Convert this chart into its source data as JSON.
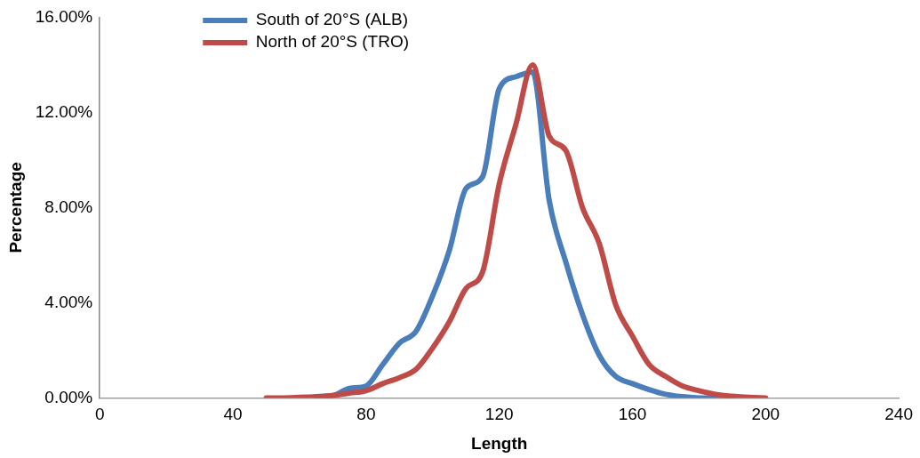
{
  "chart_data": {
    "type": "line",
    "xlabel": "Length",
    "ylabel": "Percentage",
    "x": [
      50,
      55,
      60,
      65,
      70,
      75,
      80,
      85,
      90,
      95,
      100,
      105,
      110,
      115,
      120,
      125,
      130,
      135,
      140,
      145,
      150,
      155,
      160,
      165,
      170,
      175,
      180,
      185,
      190,
      195,
      200
    ],
    "series": [
      {
        "name": "South of 20°S (ALB)",
        "color": "#4a7ebb",
        "values": [
          null,
          null,
          null,
          0.05,
          0.1,
          0.4,
          0.5,
          1.4,
          2.3,
          2.8,
          4.3,
          6.2,
          8.8,
          9.3,
          13.0,
          13.5,
          13.7,
          8.3,
          5.7,
          3.5,
          1.8,
          0.9,
          0.6,
          0.35,
          0.15,
          0.05,
          0,
          0,
          0,
          null,
          null
        ]
      },
      {
        "name": "North of 20°S (TRO)",
        "color": "#be4b48",
        "values": [
          0,
          0,
          0.02,
          0.05,
          0.1,
          0.2,
          0.3,
          0.6,
          0.85,
          1.2,
          2.1,
          3.2,
          4.6,
          5.3,
          9.0,
          11.5,
          14.0,
          11.0,
          10.4,
          8.0,
          6.5,
          3.9,
          2.6,
          1.4,
          0.9,
          0.5,
          0.3,
          0.15,
          0.07,
          0.02,
          0
        ]
      }
    ],
    "xlim": [
      0,
      240
    ],
    "xticks": [
      0,
      40,
      80,
      120,
      160,
      200,
      240
    ],
    "ylim": [
      0,
      16
    ],
    "yticks": [
      {
        "value": 0,
        "label": "0.00%"
      },
      {
        "value": 4,
        "label": "4.00%"
      },
      {
        "value": 8,
        "label": "8.00%"
      },
      {
        "value": 12,
        "label": "12.00%"
      },
      {
        "value": 16,
        "label": "16.00%"
      }
    ],
    "grid": false,
    "legend": "top left",
    "marker": "none",
    "line_style": "solid"
  }
}
